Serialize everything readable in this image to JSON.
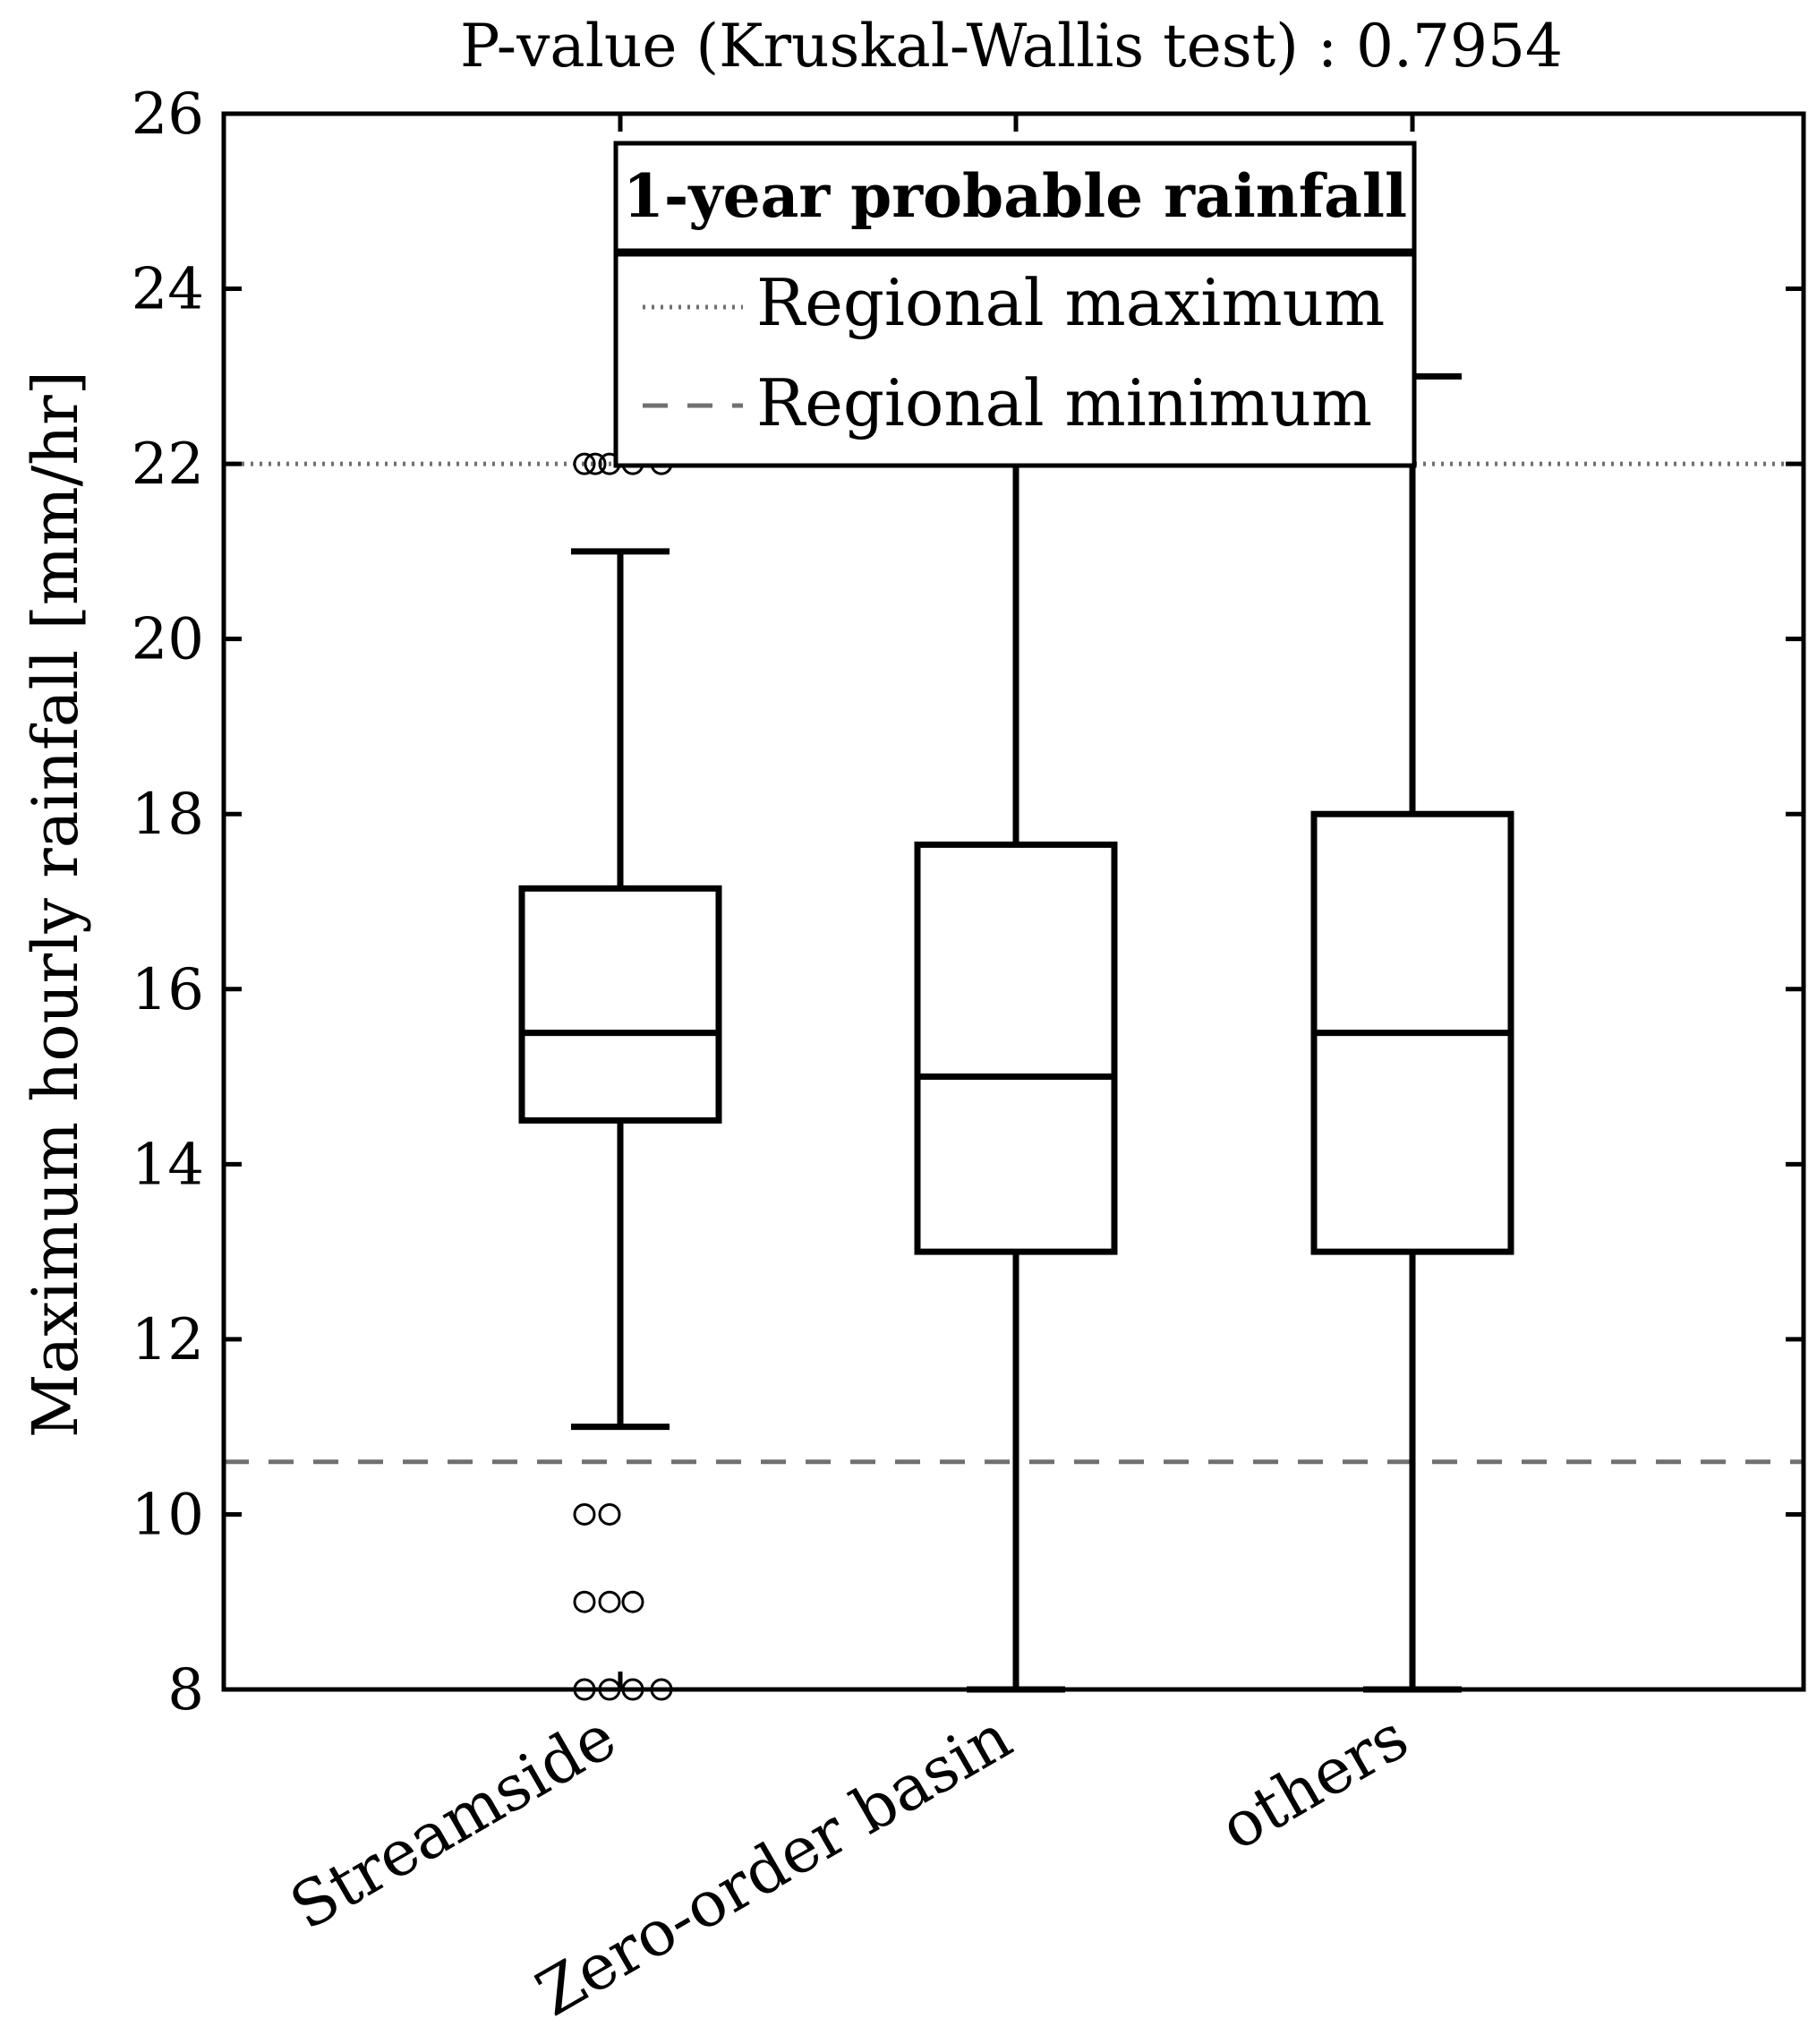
{
  "chart_data": {
    "type": "box",
    "title": "P-value (Kruskal-Wallis test) : 0.7954",
    "xlabel": "",
    "ylabel": "Maximum hourly rainfall [mm/hr]",
    "ylim": [
      8,
      26
    ],
    "yticks": [
      8,
      10,
      12,
      14,
      16,
      18,
      20,
      22,
      24,
      26
    ],
    "categories": [
      "Streamside",
      "Zero-order basin",
      "others"
    ],
    "boxes": [
      {
        "name": "Streamside",
        "q1": 14.5,
        "median": 15.5,
        "q3": 17.15,
        "whisker_low": 11,
        "whisker_high": 21,
        "outliers": [
          22,
          22,
          22,
          22,
          22,
          10,
          10,
          9,
          9,
          9,
          8,
          8,
          8,
          8
        ]
      },
      {
        "name": "Zero-order basin",
        "q1": 13,
        "median": 15,
        "q3": 17.65,
        "whisker_low": 8,
        "whisker_high": 22,
        "outliers": []
      },
      {
        "name": "others",
        "q1": 13,
        "median": 15.5,
        "q3": 18,
        "whisker_low": 8,
        "whisker_high": 23,
        "outliers": []
      }
    ],
    "reference_lines": [
      {
        "name": "Regional maximum",
        "value": 22,
        "style": "dotted",
        "color": "#707070"
      },
      {
        "name": "Regional minimum",
        "value": 10.6,
        "style": "dashed",
        "color": "#707070"
      }
    ],
    "legend": {
      "title": "1-year probable rainfall",
      "position": "top-center",
      "entries": [
        "Regional maximum",
        "Regional minimum"
      ]
    },
    "grid": false
  }
}
